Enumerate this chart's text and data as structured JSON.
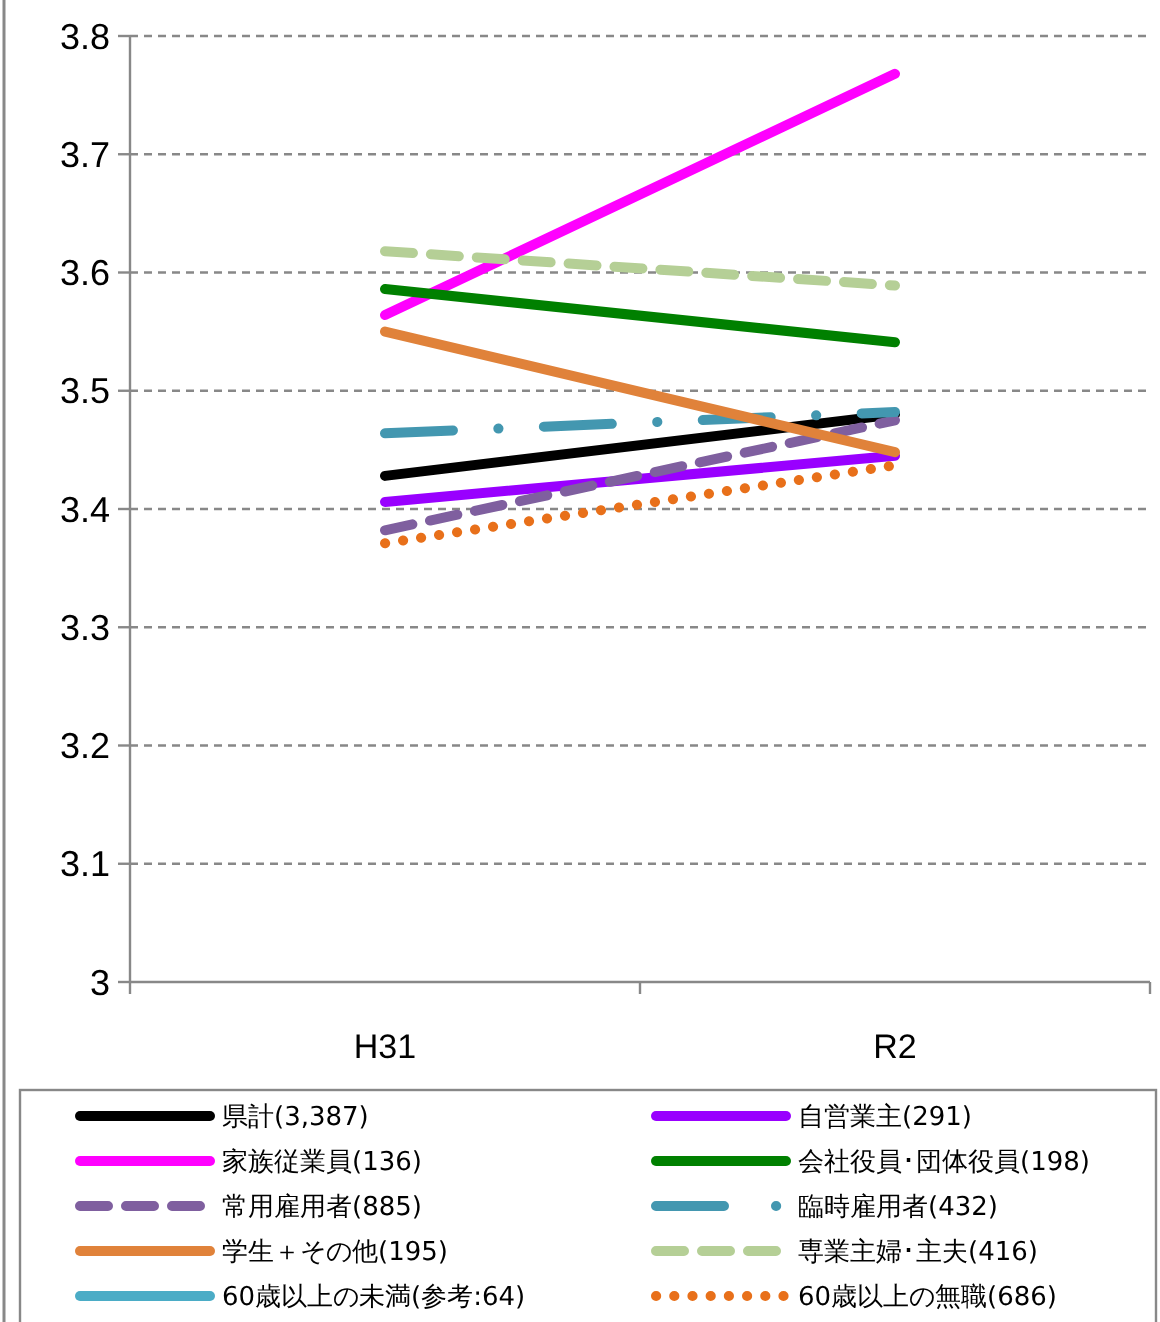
{
  "chart_data": {
    "type": "line",
    "categories": [
      "H31",
      "R2"
    ],
    "ylim": [
      3,
      3.8
    ],
    "yticks": [
      {
        "value": 3,
        "label": "3"
      },
      3.1,
      3.2,
      3.3,
      3.4,
      3.5,
      3.6,
      3.7,
      3.8
    ],
    "grid": "y",
    "legend": "bottom",
    "marker": "none",
    "series": [
      {
        "name": "県計(3,387)",
        "color": "#000000",
        "line_style": "solid",
        "values": [
          3.428,
          3.48
        ]
      },
      {
        "name": "自営業主(291)",
        "color": "#9900ff",
        "line_style": "solid",
        "values": [
          3.406,
          3.445
        ]
      },
      {
        "name": "家族従業員(136)",
        "color": "#ff00ff",
        "line_style": "solid",
        "values": [
          3.564,
          3.768
        ]
      },
      {
        "name": "会社役員･団体役員(198)",
        "color": "#008000",
        "line_style": "solid",
        "values": [
          3.586,
          3.541
        ]
      },
      {
        "name": "常用雇用者(885)",
        "color": "#7f5f9f",
        "line_style": "dashed",
        "values": [
          3.382,
          3.475
        ]
      },
      {
        "name": "臨時雇用者(432)",
        "color": "#4397b0",
        "line_style": "dashdot",
        "values": [
          3.464,
          3.482
        ]
      },
      {
        "name": "学生＋その他(195)",
        "color": "#e0823a",
        "line_style": "solid",
        "values": [
          3.55,
          3.448
        ]
      },
      {
        "name": "専業主婦･主夫(416)",
        "color": "#b5cf96",
        "line_style": "dashed",
        "values": [
          3.618,
          3.589
        ]
      },
      {
        "name": "60歳以上の未満(参考:64)",
        "color": "#4bacc6",
        "line_style": "solid",
        "values": [
          null,
          null
        ]
      },
      {
        "name": "60歳以上の無職(686)",
        "color": "#e8701a",
        "line_style": "dotted",
        "values": [
          3.371,
          3.437
        ]
      }
    ]
  }
}
